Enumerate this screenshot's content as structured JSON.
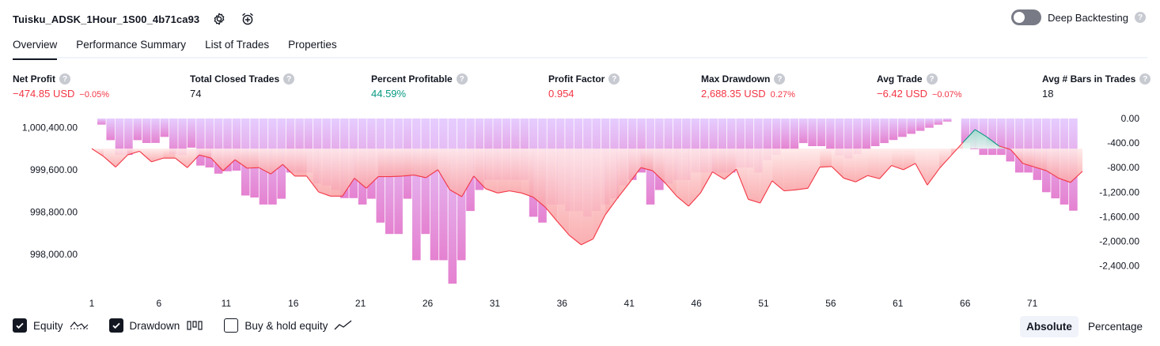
{
  "header": {
    "title": "Tuisku_ADSK_1Hour_1S00_4b71ca93",
    "settings_icon": "gear-icon",
    "alert_icon": "alarm-clock-plus-icon"
  },
  "deep_backtesting": {
    "label": "Deep Backtesting",
    "enabled": false,
    "help": "?"
  },
  "tabs": [
    {
      "label": "Overview",
      "active": true
    },
    {
      "label": "Performance Summary",
      "active": false
    },
    {
      "label": "List of Trades",
      "active": false
    },
    {
      "label": "Properties",
      "active": false
    }
  ],
  "stats": [
    {
      "label": "Net Profit",
      "value": "−474.85 USD",
      "sub": "−0.05%",
      "tone": "neg"
    },
    {
      "label": "Total Closed Trades",
      "value": "74",
      "sub": "",
      "tone": "neu"
    },
    {
      "label": "Percent Profitable",
      "value": "44.59%",
      "sub": "",
      "tone": "pos"
    },
    {
      "label": "Profit Factor",
      "value": "0.954",
      "sub": "",
      "tone": "neg"
    },
    {
      "label": "Max Drawdown",
      "value": "2,688.35 USD",
      "sub": "0.27%",
      "tone": "neg"
    },
    {
      "label": "Avg Trade",
      "value": "−6.42 USD",
      "sub": "−0.07%",
      "tone": "neg"
    },
    {
      "label": "Avg # Bars in Trades",
      "value": "18",
      "sub": "",
      "tone": "neu"
    }
  ],
  "chart_data": {
    "type": "line",
    "x_ticks": [
      "1",
      "6",
      "11",
      "16",
      "21",
      "26",
      "31",
      "36",
      "41",
      "46",
      "51",
      "56",
      "61",
      "66",
      "71"
    ],
    "y_left_ticks": [
      "1,000,400.00",
      "999,600.00",
      "998,800.00",
      "998,000.00"
    ],
    "y_left_values": [
      1000400,
      999600,
      998800,
      998000
    ],
    "y_left_range": [
      997400,
      1000570
    ],
    "y_right_ticks": [
      "0.00",
      "-400.00",
      "-800.00",
      "-1,200.00",
      "-1,600.00",
      "-2,000.00",
      "-2,400.00"
    ],
    "y_right_values": [
      0,
      -400,
      -800,
      -1200,
      -1600,
      -2000,
      -2400
    ],
    "y_right_range": [
      -2700,
      0
    ],
    "series": [
      {
        "name": "Equity",
        "color": "#f23645",
        "values": [
          1000000,
          999850,
          999650,
          999880,
          999950,
          999750,
          999820,
          999820,
          999640,
          999880,
          999820,
          999580,
          999790,
          999630,
          999640,
          999520,
          999700,
          999480,
          999480,
          999180,
          999100,
          999100,
          999440,
          999250,
          999470,
          999470,
          999480,
          999500,
          999450,
          999600,
          999220,
          999090,
          999480,
          999240,
          999160,
          999200,
          999160,
          999080,
          998890,
          998620,
          998360,
          998180,
          998290,
          998740,
          999050,
          999340,
          999640,
          999580,
          999360,
          999100,
          998910,
          999160,
          999560,
          999420,
          999610,
          999040,
          998970,
          999390,
          999200,
          999220,
          999250,
          999650,
          999660,
          999440,
          999370,
          999490,
          999430,
          999680,
          999600,
          999720,
          999310,
          999620,
          999870,
          1000120,
          1000360,
          1000220,
          1000050,
          999980,
          999720,
          999650,
          999580,
          999440,
          999360,
          999570
        ]
      }
    ],
    "drawdown": [
      -99,
      -352,
      -593,
      -593,
      -352,
      -398,
      -397,
      -300,
      -582,
      -593,
      -475,
      -766,
      -797,
      -897,
      -859,
      -848,
      -1253,
      -1286,
      -1400,
      -1400,
      -1306,
      -880,
      -880,
      -880,
      -1058,
      -1090,
      -1164,
      -1296,
      -1296,
      -1400,
      -1306,
      -1695,
      -1880,
      -1880,
      -1306,
      -2306,
      -1880,
      -2306,
      -2306,
      -2688,
      -2306,
      -1506,
      -1164,
      -1000,
      -1000,
      -1000,
      -1000,
      -1000,
      -1600,
      -1695,
      -1400,
      -1400,
      -1506,
      -1506,
      -1600,
      -1506,
      -1400,
      -1300,
      -1090,
      -1000,
      -880,
      -1400,
      -1164,
      -1058,
      -1000,
      -1000,
      -880,
      -880,
      -880,
      -880,
      -880,
      -797,
      -797,
      -880,
      -680,
      -593,
      -500,
      -500,
      -400,
      -450,
      -450,
      -500,
      -600,
      -650,
      -580,
      -500,
      -450,
      -400,
      -350,
      -300,
      -250,
      -200,
      -150,
      -100,
      -50,
      0,
      -400,
      -500,
      -593,
      -593,
      -593,
      -700,
      -880,
      -880,
      -1000,
      -1200,
      -1300,
      -1400,
      -1500
    ]
  },
  "legend": [
    {
      "label": "Equity",
      "checked": true,
      "icon": "equity-line-icon"
    },
    {
      "label": "Drawdown",
      "checked": true,
      "icon": "drawdown-bars-icon"
    },
    {
      "label": "Buy & hold equity",
      "checked": false,
      "icon": "buy-hold-line-icon"
    }
  ],
  "mode": [
    {
      "label": "Absolute",
      "active": true
    },
    {
      "label": "Percentage",
      "active": false
    }
  ]
}
